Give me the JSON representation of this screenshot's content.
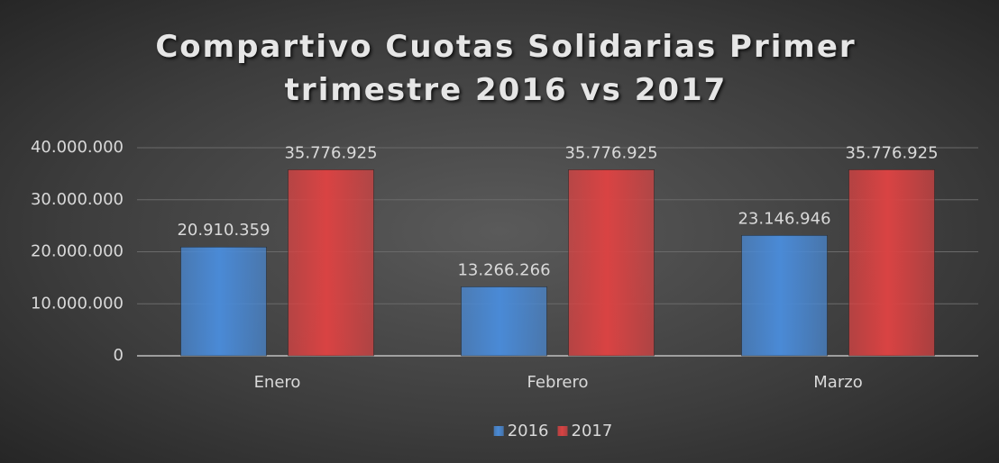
{
  "chart_data": {
    "type": "bar",
    "title": "Compartivo Cuotas Solidarias Primer trimestre 2016 vs 2017",
    "categories": [
      "Enero",
      "Febrero",
      "Marzo"
    ],
    "series": [
      {
        "name": "2016",
        "color": "#4a8ad6",
        "values": [
          20910359,
          13266266,
          23146946
        ],
        "value_labels": [
          "20.910.359",
          "13.266.266",
          "23.146.946"
        ]
      },
      {
        "name": "2017",
        "color": "#d94343",
        "values": [
          35776925,
          35776925,
          35776925
        ],
        "value_labels": [
          "35.776.925",
          "35.776.925",
          "35.776.925"
        ]
      }
    ],
    "ylim": [
      0,
      40000000
    ],
    "yticks": [
      0,
      {
        "value": 10000000,
        "label": "10.000.000"
      },
      {
        "value": 20000000,
        "label": "20.000.000"
      },
      {
        "value": 30000000,
        "label": "30.000.000"
      },
      {
        "value": 40000000,
        "label": "40.000.000"
      }
    ],
    "grid": true,
    "legend": "bottom"
  }
}
